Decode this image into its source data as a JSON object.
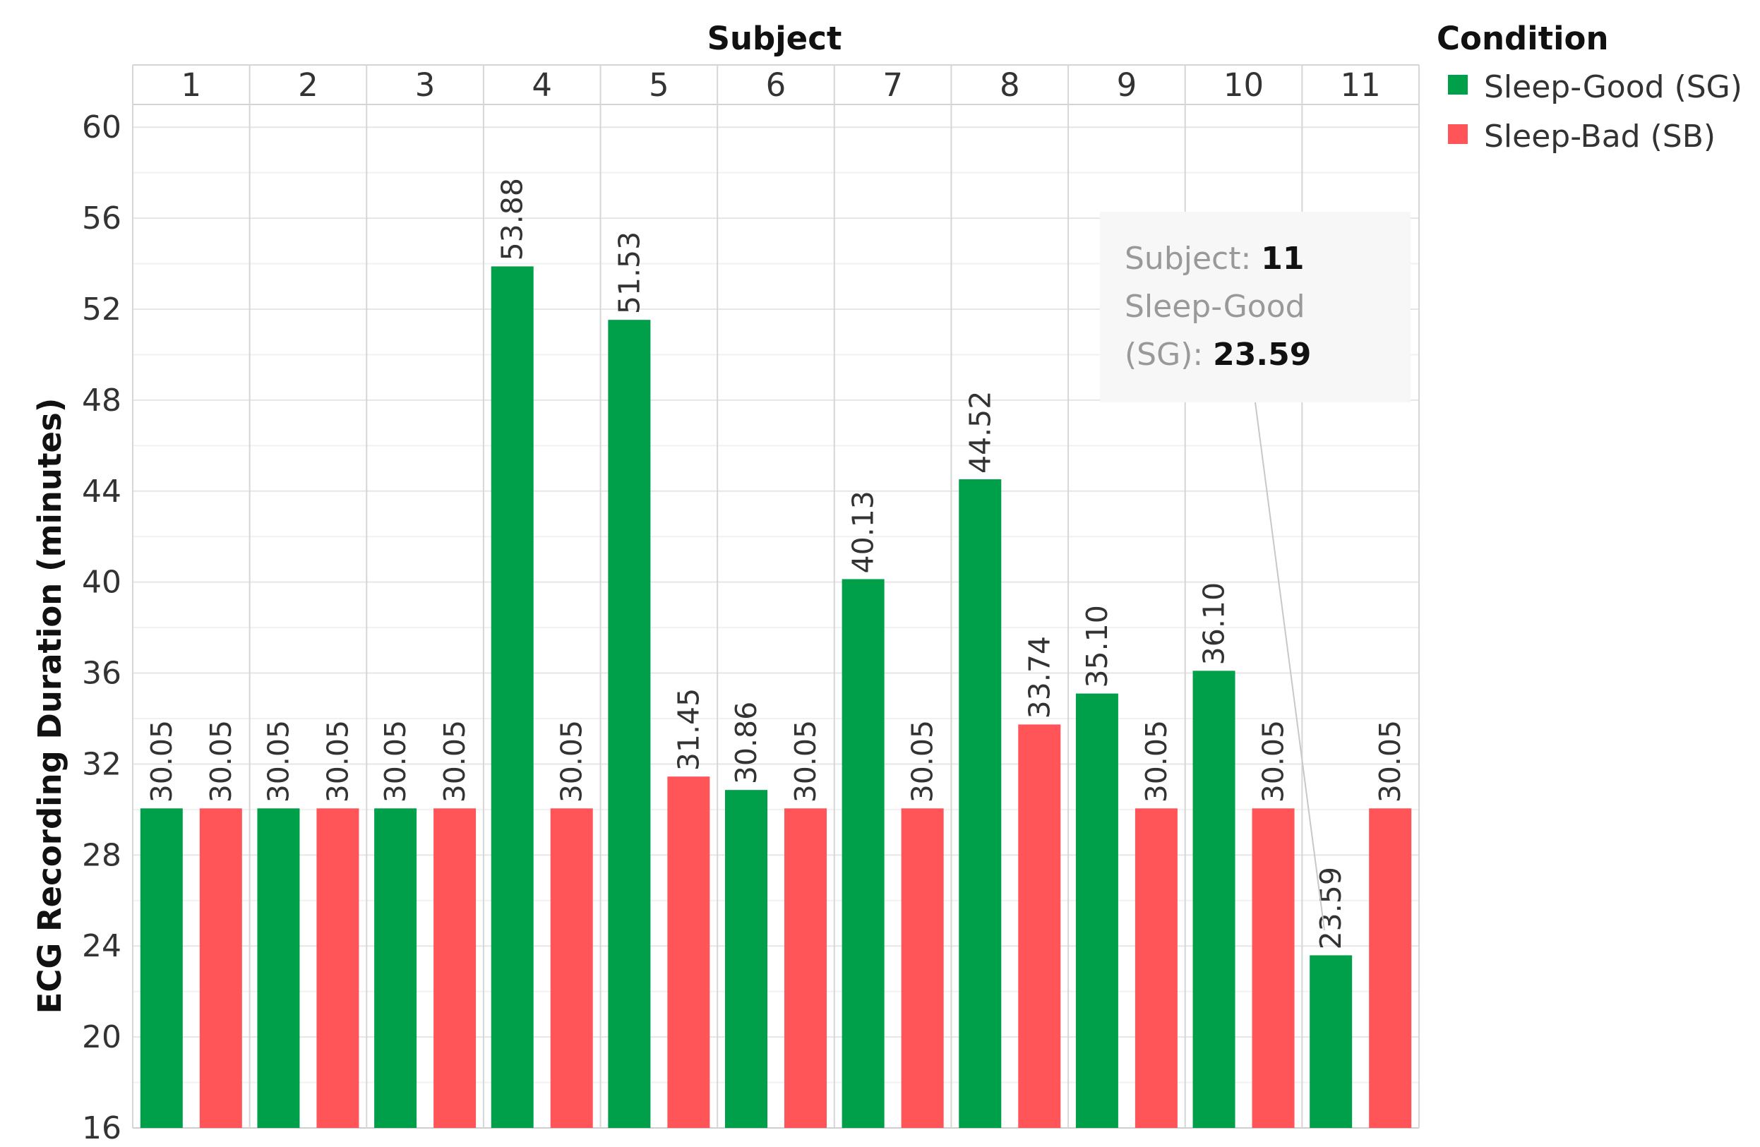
{
  "chart_data": {
    "type": "bar",
    "title": "Subject",
    "xlabel": "Subject",
    "ylabel": "ECG Recording Duration (minutes)",
    "ylim": [
      16,
      61
    ],
    "yticks": [
      "16",
      "20",
      "24",
      "28",
      "32",
      "36",
      "40",
      "44",
      "48",
      "52",
      "56",
      "60"
    ],
    "categories": [
      "1",
      "2",
      "3",
      "4",
      "5",
      "6",
      "7",
      "8",
      "9",
      "10",
      "11"
    ],
    "series": [
      {
        "name": "Sleep-Good (SG)",
        "color": "#00a04a",
        "values": [
          30.05,
          30.05,
          30.05,
          53.88,
          51.53,
          30.86,
          40.13,
          44.52,
          35.1,
          36.1,
          23.59
        ],
        "labels": [
          "30.05",
          "30.05",
          "30.05",
          "53.88",
          "51.53",
          "30.86",
          "40.13",
          "44.52",
          "35.10",
          "36.10",
          "23.59"
        ]
      },
      {
        "name": "Sleep-Bad (SB)",
        "color": "#ff5558",
        "values": [
          30.05,
          30.05,
          30.05,
          30.05,
          31.45,
          30.05,
          30.05,
          33.74,
          30.05,
          30.05,
          30.05
        ],
        "labels": [
          "30.05",
          "30.05",
          "30.05",
          "30.05",
          "31.45",
          "30.05",
          "30.05",
          "33.74",
          "30.05",
          "30.05",
          "30.05"
        ]
      }
    ],
    "legend": {
      "title": "Condition",
      "position": "top-right",
      "items": [
        "Sleep-Good (SG)",
        "Sleep-Bad (SB)"
      ]
    },
    "tooltip": {
      "subject_label": "Subject: ",
      "subject_value": "11",
      "series_label_line1": "Sleep-Good",
      "series_label_line2": "(SG): ",
      "value": "23.59"
    }
  }
}
